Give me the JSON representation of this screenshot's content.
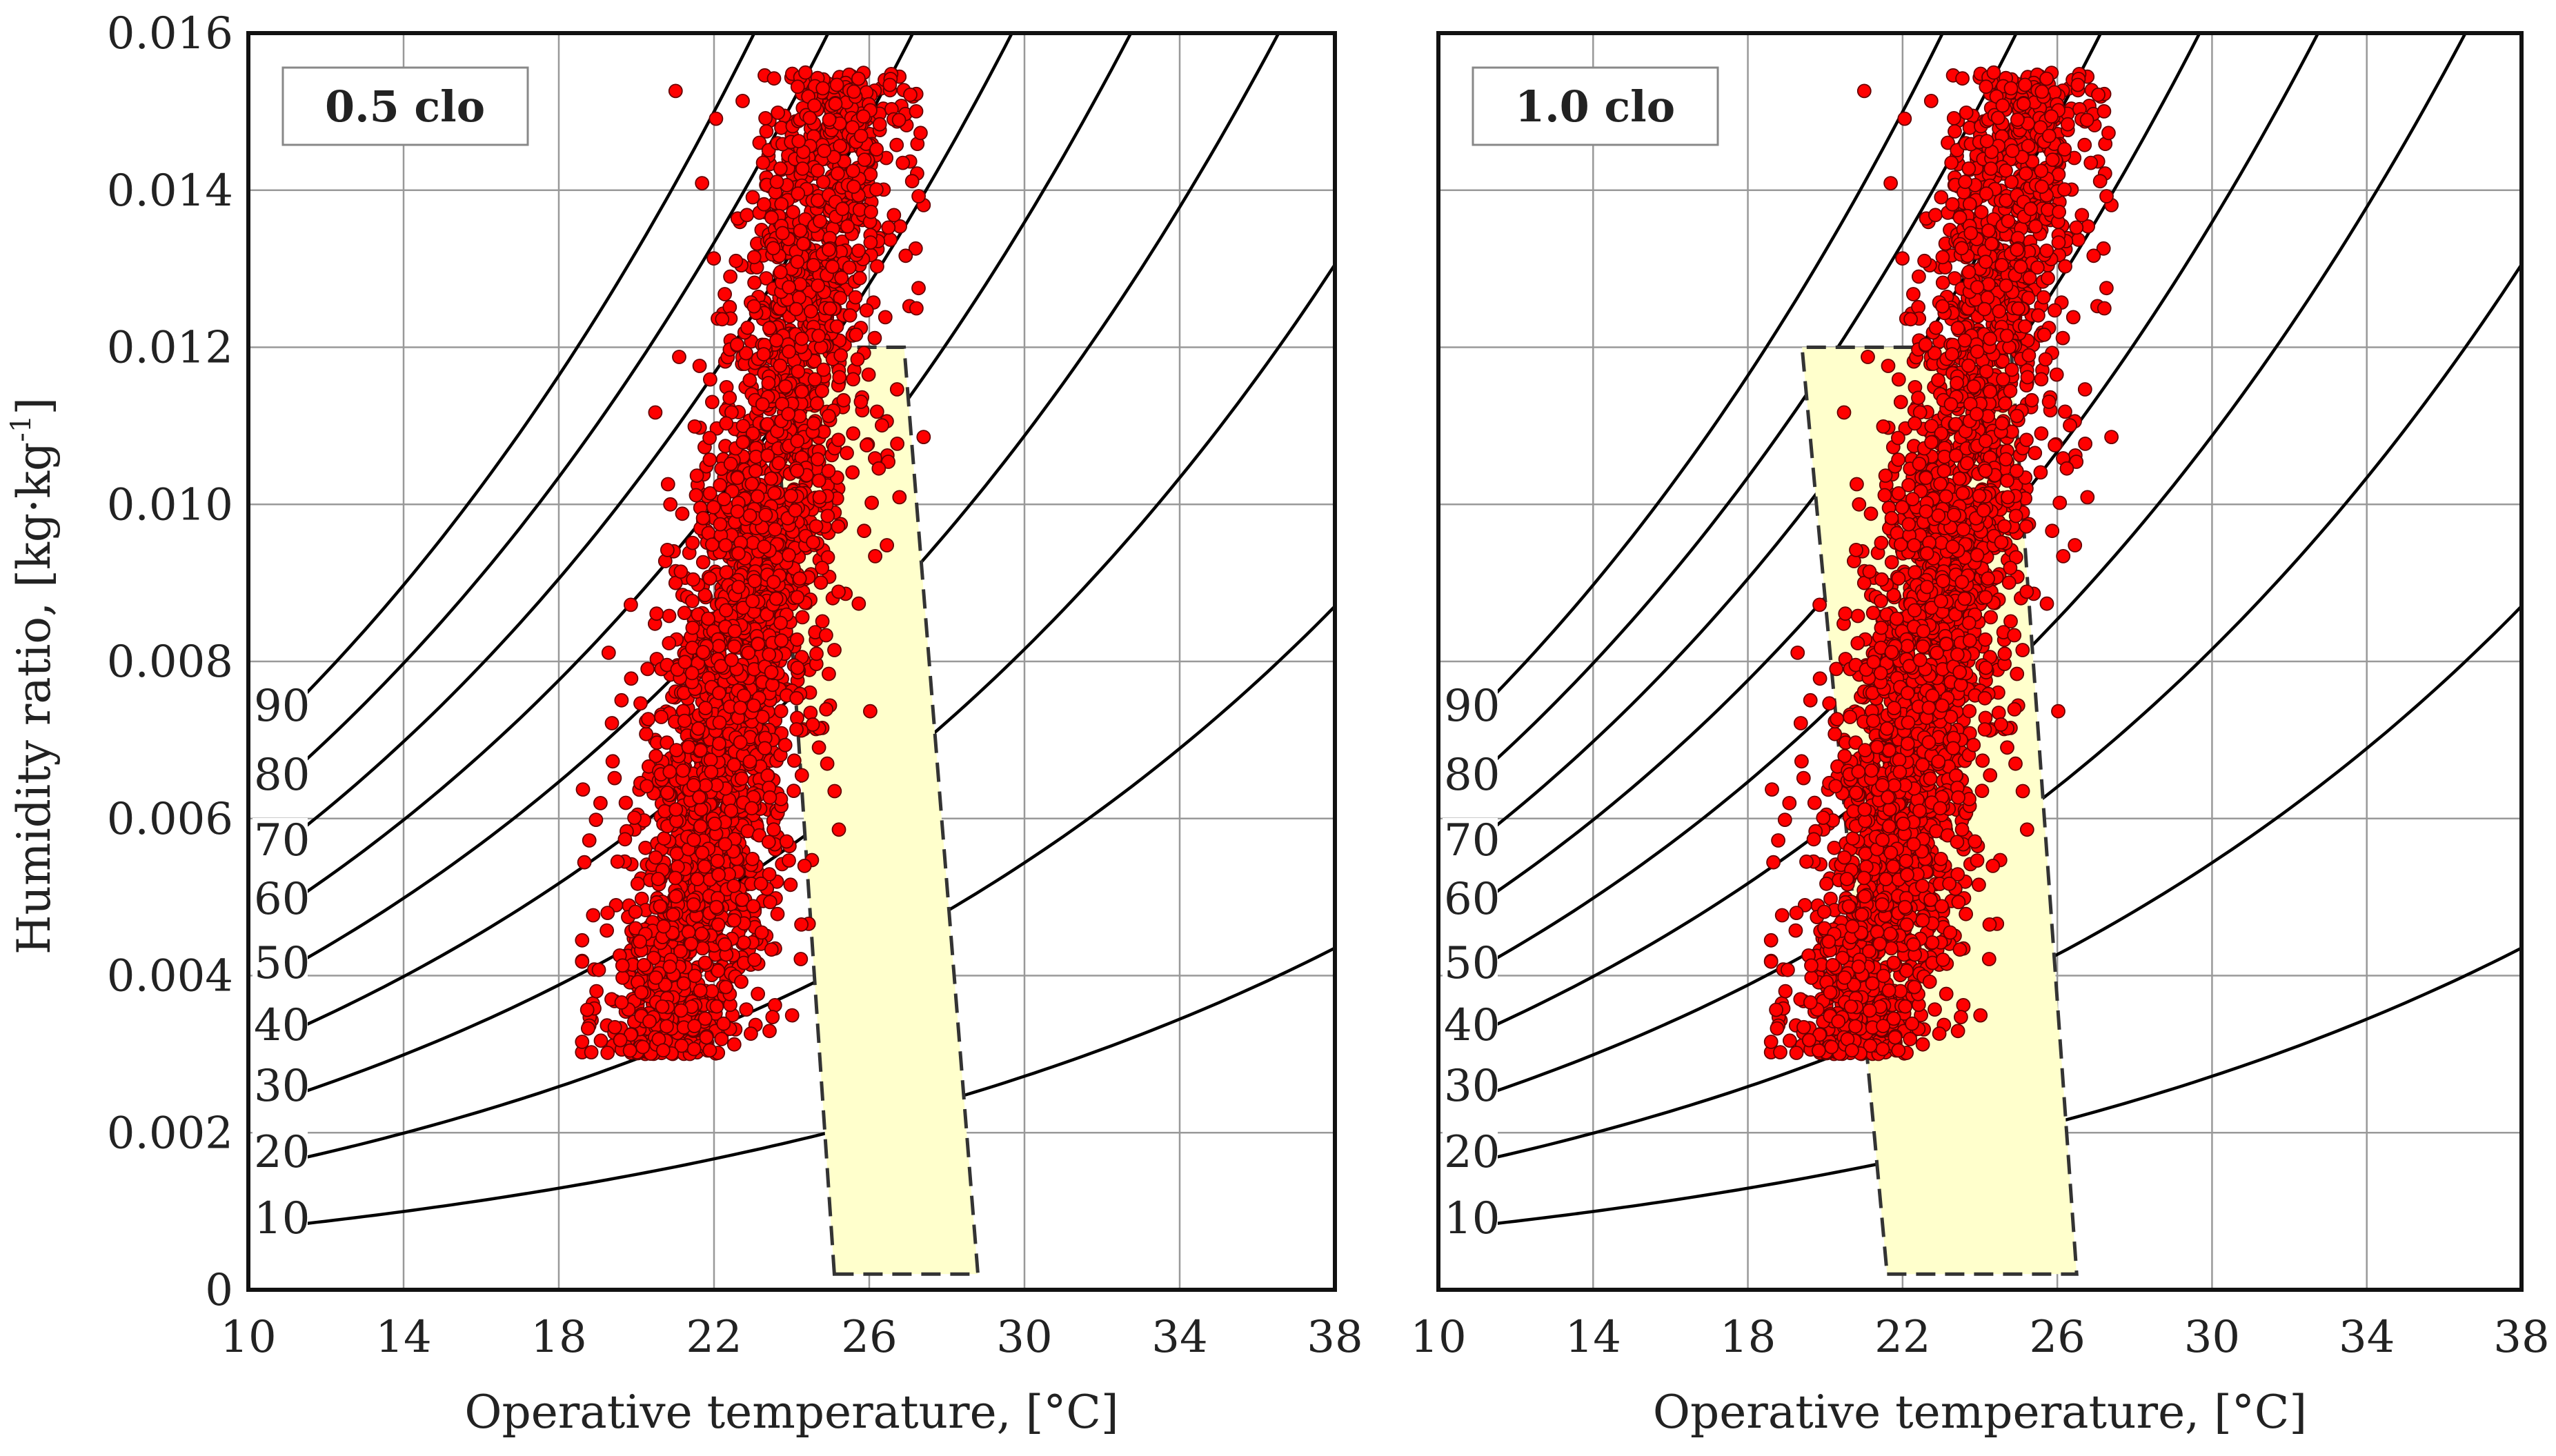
{
  "chart_data": [
    {
      "type": "scatter",
      "panel_label": "0.5 clo",
      "xlabel": "Operative temperature, [°C]",
      "ylabel": "Humidity ratio, [kg·kg-1]",
      "ylabel_main": "Humidity ratio, [kg·kg",
      "ylabel_sup": "-1",
      "ylabel_end": "]",
      "xlim": [
        10,
        38
      ],
      "ylim": [
        0,
        0.016
      ],
      "xticks": [
        10,
        14,
        18,
        22,
        26,
        30,
        34,
        38
      ],
      "xtick_labels": [
        "10",
        "14",
        "18",
        "22",
        "26",
        "30",
        "34",
        "38"
      ],
      "yticks": [
        0,
        0.002,
        0.004,
        0.006,
        0.008,
        0.01,
        0.012,
        0.014,
        0.016
      ],
      "ytick_labels": [
        "0",
        "0.002",
        "0.004",
        "0.006",
        "0.008",
        "0.010",
        "0.012",
        "0.014",
        "0.016"
      ],
      "grid": true,
      "rh_curves_percent": [
        10,
        20,
        30,
        40,
        50,
        60,
        70,
        80,
        90
      ],
      "rh_labels": [
        "10",
        "20",
        "30",
        "40",
        "50",
        "60",
        "70",
        "80",
        "90"
      ],
      "comfort_zone": {
        "vertices_x": [
          25.1,
          28.8,
          26.9,
          23.5
        ],
        "vertices_y": [
          0.0002,
          0.0002,
          0.012,
          0.012
        ],
        "fill": "#FFFFCC",
        "stroke": "#333333"
      },
      "scatter_cloud": {
        "description_points": [
          {
            "x": 20.8,
            "y": 0.003
          },
          {
            "x": 19.5,
            "y": 0.005
          },
          {
            "x": 21.5,
            "y": 0.0075
          },
          {
            "x": 22.5,
            "y": 0.01
          },
          {
            "x": 24.0,
            "y": 0.0125
          },
          {
            "x": 25.5,
            "y": 0.015
          }
        ],
        "approx_count": 3000,
        "color": "#FF0000",
        "edgecolor": "#660000"
      }
    },
    {
      "type": "scatter",
      "panel_label": "1.0 clo",
      "xlabel": "Operative temperature, [°C]",
      "xlim": [
        10,
        38
      ],
      "ylim": [
        0,
        0.016
      ],
      "xticks": [
        10,
        14,
        18,
        22,
        26,
        30,
        34,
        38
      ],
      "xtick_labels": [
        "10",
        "14",
        "18",
        "22",
        "26",
        "30",
        "34",
        "38"
      ],
      "yticks": [
        0,
        0.002,
        0.004,
        0.006,
        0.008,
        0.01,
        0.012,
        0.014,
        0.016
      ],
      "grid": true,
      "rh_curves_percent": [
        10,
        20,
        30,
        40,
        50,
        60,
        70,
        80,
        90
      ],
      "rh_labels": [
        "10",
        "20",
        "30",
        "40",
        "50",
        "60",
        "70",
        "80",
        "90"
      ],
      "comfort_zone": {
        "vertices_x": [
          21.6,
          26.5,
          24.8,
          19.4
        ],
        "vertices_y": [
          0.0002,
          0.0002,
          0.012,
          0.012
        ],
        "fill": "#FFFFCC",
        "stroke": "#333333"
      },
      "scatter_cloud": {
        "description_points": [
          {
            "x": 20.8,
            "y": 0.003
          },
          {
            "x": 19.5,
            "y": 0.005
          },
          {
            "x": 21.5,
            "y": 0.0075
          },
          {
            "x": 22.5,
            "y": 0.01
          },
          {
            "x": 24.0,
            "y": 0.0125
          },
          {
            "x": 25.5,
            "y": 0.015
          }
        ],
        "approx_count": 3000,
        "color": "#FF0000",
        "edgecolor": "#660000"
      }
    }
  ]
}
